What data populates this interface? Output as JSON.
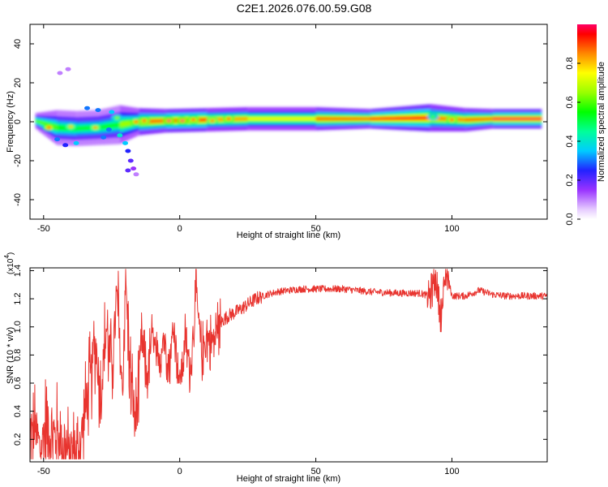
{
  "figure_title": "C2E1.2026.076.00.59.G08",
  "colorbar": {
    "label": "Normalized spectral amplitude",
    "ticks": [
      {
        "value": 0.0,
        "label": "0.0"
      },
      {
        "value": 0.2,
        "label": "0.2"
      },
      {
        "value": 0.4,
        "label": "0.4"
      },
      {
        "value": 0.6,
        "label": "0.6"
      },
      {
        "value": 0.8,
        "label": "0.8"
      }
    ]
  },
  "chart_data": [
    {
      "type": "heatmap",
      "title": "C2E1.2026.076.00.59.G08",
      "xlabel": "Height of straight line (km)",
      "ylabel": "Frequency (Hz)",
      "xlim": [
        -55,
        135
      ],
      "ylim": [
        -50,
        50
      ],
      "xticks": [
        {
          "value": -50,
          "label": "-50"
        },
        {
          "value": 0,
          "label": "0"
        },
        {
          "value": 50,
          "label": "50"
        },
        {
          "value": 100,
          "label": "100"
        }
      ],
      "yticks": [
        {
          "value": -40,
          "label": "-40"
        },
        {
          "value": -20,
          "label": "-20"
        },
        {
          "value": 0,
          "label": "0"
        },
        {
          "value": 20,
          "label": "20"
        },
        {
          "value": 40,
          "label": "40"
        }
      ],
      "colorscale": "rainbow (0 = white/violet, 1 = red)",
      "ridge": [
        {
          "x": -53,
          "freq": 0.5,
          "amp": 0.55,
          "width": 4
        },
        {
          "x": -45,
          "freq": -3.0,
          "amp": 0.55,
          "width": 9
        },
        {
          "x": -38,
          "freq": -3.5,
          "amp": 0.45,
          "width": 9
        },
        {
          "x": -30,
          "freq": -3.0,
          "amp": 0.5,
          "width": 9
        },
        {
          "x": -22,
          "freq": -1.5,
          "amp": 0.45,
          "width": 10
        },
        {
          "x": -15,
          "freq": 0.0,
          "amp": 0.75,
          "width": 7
        },
        {
          "x": -5,
          "freq": 0.5,
          "amp": 0.85,
          "width": 6
        },
        {
          "x": 10,
          "freq": 1.0,
          "amp": 0.85,
          "width": 6
        },
        {
          "x": 25,
          "freq": 1.5,
          "amp": 0.65,
          "width": 6
        },
        {
          "x": 50,
          "freq": 1.5,
          "amp": 0.7,
          "width": 6
        },
        {
          "x": 70,
          "freq": 1.5,
          "amp": 0.9,
          "width": 5
        },
        {
          "x": 92,
          "freq": 2.0,
          "amp": 0.85,
          "width": 7
        },
        {
          "x": 105,
          "freq": 1.0,
          "amp": 0.7,
          "width": 6
        },
        {
          "x": 115,
          "freq": 1.5,
          "amp": 0.9,
          "width": 5
        },
        {
          "x": 133,
          "freq": 1.5,
          "amp": 0.9,
          "width": 5
        }
      ],
      "blobs": [
        {
          "x": -48,
          "freq": -3.0,
          "amp": 0.95
        },
        {
          "x": -40,
          "freq": -2.5,
          "amp": 0.8
        },
        {
          "x": -31,
          "freq": -3.0,
          "amp": 0.85
        },
        {
          "x": -23,
          "freq": 2.0,
          "amp": 0.65
        },
        {
          "x": -16,
          "freq": 0.0,
          "amp": 0.95
        },
        {
          "x": -13,
          "freq": 0.5,
          "amp": 0.95
        },
        {
          "x": -4,
          "freq": 0.5,
          "amp": 1.0
        },
        {
          "x": 1,
          "freq": 0.5,
          "amp": 1.0
        },
        {
          "x": 5,
          "freq": 1.0,
          "amp": 0.95
        },
        {
          "x": 12,
          "freq": 0.5,
          "amp": 0.9
        },
        {
          "x": 18,
          "freq": 1.5,
          "amp": 0.95
        },
        {
          "x": 93,
          "freq": 2.5,
          "amp": 0.6
        },
        {
          "x": 100,
          "freq": 1.0,
          "amp": 0.95
        }
      ],
      "scatter": [
        {
          "x": -45,
          "freq": -9.0,
          "amp": 0.3
        },
        {
          "x": -42,
          "freq": -12.0,
          "amp": 0.25
        },
        {
          "x": -38,
          "freq": -11.0,
          "amp": 0.35
        },
        {
          "x": -44,
          "freq": 25.0,
          "amp": 0.1
        },
        {
          "x": -41,
          "freq": 27.0,
          "amp": 0.1
        },
        {
          "x": -34,
          "freq": 7.0,
          "amp": 0.3
        },
        {
          "x": -30,
          "freq": 6.0,
          "amp": 0.3
        },
        {
          "x": -26,
          "freq": -4.0,
          "amp": 0.3
        },
        {
          "x": -22,
          "freq": -7.0,
          "amp": 0.4
        },
        {
          "x": -20,
          "freq": -11.0,
          "amp": 0.35
        },
        {
          "x": -19,
          "freq": -15.0,
          "amp": 0.25
        },
        {
          "x": -18,
          "freq": -20.0,
          "amp": 0.2
        },
        {
          "x": -17,
          "freq": -24.0,
          "amp": 0.15
        },
        {
          "x": -19,
          "freq": -25.0,
          "amp": 0.2
        },
        {
          "x": -16,
          "freq": -27.0,
          "amp": 0.1
        },
        {
          "x": -25,
          "freq": 5.0,
          "amp": 0.35
        },
        {
          "x": -28,
          "freq": -8.0,
          "amp": 0.3
        }
      ]
    },
    {
      "type": "line",
      "xlabel": "Height of straight line (km)",
      "ylabel": "SNR (10 * v/v)",
      "y_multiplier_label": "(x10",
      "y_multiplier_exponent": "4",
      "xlim": [
        -55,
        135
      ],
      "ylim": [
        0.04,
        1.42
      ],
      "xticks": [
        {
          "value": -50,
          "label": "-50"
        },
        {
          "value": 0,
          "label": "0"
        },
        {
          "value": 50,
          "label": "50"
        },
        {
          "value": 100,
          "label": "100"
        }
      ],
      "yticks": [
        {
          "value": 0.2,
          "label": "0.2"
        },
        {
          "value": 0.4,
          "label": "0.4"
        },
        {
          "value": 0.6,
          "label": "0.6"
        },
        {
          "value": 0.8,
          "label": "0.8"
        },
        {
          "value": 1.0,
          "label": "1.0"
        },
        {
          "value": 1.2,
          "label": "1.2"
        },
        {
          "value": 1.4,
          "label": "1.4"
        }
      ],
      "series": [
        {
          "name": "SNR",
          "color": "#e8342f",
          "points": [
            [
              -55,
              0.2
            ],
            [
              -53,
              0.28
            ],
            [
              -51,
              0.12
            ],
            [
              -49,
              0.35
            ],
            [
              -47,
              0.2
            ],
            [
              -45,
              0.25
            ],
            [
              -43,
              0.15
            ],
            [
              -41,
              0.1
            ],
            [
              -39,
              0.08
            ],
            [
              -37,
              0.12
            ],
            [
              -35,
              0.35
            ],
            [
              -33,
              0.6
            ],
            [
              -31,
              0.9
            ],
            [
              -29,
              0.5
            ],
            [
              -27,
              1.0
            ],
            [
              -25,
              0.7
            ],
            [
              -23,
              1.2
            ],
            [
              -21,
              0.5
            ],
            [
              -20,
              1.38
            ],
            [
              -18,
              0.6
            ],
            [
              -16,
              0.3
            ],
            [
              -14,
              0.9
            ],
            [
              -12,
              0.65
            ],
            [
              -10,
              0.95
            ],
            [
              -8,
              0.7
            ],
            [
              -6,
              0.95
            ],
            [
              -4,
              0.75
            ],
            [
              -2,
              1.0
            ],
            [
              0,
              0.6
            ],
            [
              2,
              0.9
            ],
            [
              4,
              0.7
            ],
            [
              6,
              1.25
            ],
            [
              8,
              0.8
            ],
            [
              10,
              0.95
            ],
            [
              12,
              0.88
            ],
            [
              14,
              1.0
            ],
            [
              16,
              1.05
            ],
            [
              18,
              1.08
            ],
            [
              20,
              1.1
            ],
            [
              22,
              1.12
            ],
            [
              25,
              1.16
            ],
            [
              28,
              1.2
            ],
            [
              32,
              1.23
            ],
            [
              36,
              1.25
            ],
            [
              40,
              1.26
            ],
            [
              45,
              1.27
            ],
            [
              50,
              1.27
            ],
            [
              60,
              1.27
            ],
            [
              70,
              1.25
            ],
            [
              80,
              1.24
            ],
            [
              88,
              1.24
            ],
            [
              92,
              1.22
            ],
            [
              94,
              1.35
            ],
            [
              96,
              1.08
            ],
            [
              98,
              1.4
            ],
            [
              100,
              1.22
            ],
            [
              105,
              1.22
            ],
            [
              110,
              1.26
            ],
            [
              115,
              1.23
            ],
            [
              120,
              1.22
            ],
            [
              125,
              1.22
            ],
            [
              130,
              1.22
            ],
            [
              135,
              1.22
            ]
          ]
        }
      ]
    }
  ]
}
